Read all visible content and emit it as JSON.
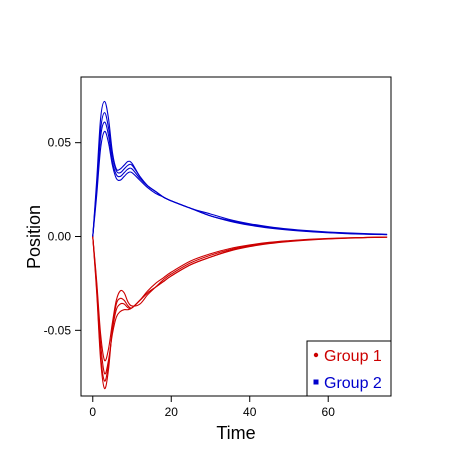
{
  "chart_data": {
    "type": "line",
    "title": "",
    "xlabel": "Time",
    "ylabel": "Position",
    "xlim": [
      -3,
      76
    ],
    "ylim": [
      -0.085,
      0.085
    ],
    "xticks": [
      "0",
      "20",
      "40",
      "60"
    ],
    "yticks": [
      "-0.05",
      "0.00",
      "0.05"
    ],
    "legend_position": "bottom-right",
    "grid": false,
    "legend": [
      {
        "label": "Group 1",
        "color": "#cc0000"
      },
      {
        "label": "Group 2",
        "color": "#0000cc"
      }
    ],
    "series": [
      {
        "group": "Group 1",
        "color": "#cc0000",
        "x": [
          0,
          1,
          2,
          3,
          4,
          5,
          6,
          7,
          8,
          9,
          10,
          12,
          14,
          16,
          18,
          20,
          25,
          30,
          35,
          40,
          45,
          50,
          55,
          60,
          65,
          70,
          75
        ],
        "y": [
          0,
          -0.03,
          -0.066,
          -0.081,
          -0.071,
          -0.049,
          -0.036,
          -0.033,
          -0.034,
          -0.037,
          -0.038,
          -0.034,
          -0.03,
          -0.027,
          -0.024,
          -0.021,
          -0.015,
          -0.011,
          -0.0075,
          -0.0052,
          -0.0036,
          -0.0025,
          -0.0017,
          -0.0012,
          -0.0008,
          -0.0005,
          -0.0003
        ]
      },
      {
        "group": "Group 1",
        "color": "#cc0000",
        "x": [
          0,
          1,
          2,
          3,
          4,
          5,
          6,
          7,
          8,
          9,
          10,
          12,
          14,
          16,
          18,
          20,
          25,
          30,
          35,
          40,
          45,
          50,
          55,
          60,
          65,
          70,
          75
        ],
        "y": [
          0,
          -0.028,
          -0.063,
          -0.077,
          -0.068,
          -0.05,
          -0.039,
          -0.036,
          -0.036,
          -0.038,
          -0.038,
          -0.034,
          -0.03,
          -0.027,
          -0.024,
          -0.021,
          -0.015,
          -0.011,
          -0.0077,
          -0.0054,
          -0.0038,
          -0.0027,
          -0.0019,
          -0.0013,
          -0.0009,
          -0.0006,
          -0.0004
        ]
      },
      {
        "group": "Group 1",
        "color": "#cc0000",
        "x": [
          0,
          1,
          2,
          3,
          4,
          5,
          6,
          7,
          8,
          9,
          10,
          12,
          14,
          16,
          18,
          20,
          25,
          30,
          35,
          40,
          45,
          50,
          55,
          60,
          65,
          70,
          75
        ],
        "y": [
          0,
          -0.026,
          -0.057,
          -0.073,
          -0.066,
          -0.052,
          -0.043,
          -0.04,
          -0.039,
          -0.039,
          -0.038,
          -0.034,
          -0.029,
          -0.025,
          -0.022,
          -0.019,
          -0.013,
          -0.0092,
          -0.0064,
          -0.0045,
          -0.0031,
          -0.0022,
          -0.0015,
          -0.001,
          -0.0007,
          -0.0005,
          -0.0003
        ]
      },
      {
        "group": "Group 1",
        "color": "#cc0000",
        "x": [
          0,
          1,
          2,
          3,
          4,
          5,
          6,
          7,
          8,
          9,
          10,
          12,
          14,
          16,
          18,
          20,
          25,
          30,
          35,
          40,
          45,
          50,
          55,
          60,
          65,
          70,
          75
        ],
        "y": [
          0,
          -0.024,
          -0.052,
          -0.066,
          -0.06,
          -0.046,
          -0.034,
          -0.029,
          -0.03,
          -0.035,
          -0.037,
          -0.036,
          -0.031,
          -0.027,
          -0.023,
          -0.02,
          -0.014,
          -0.01,
          -0.007,
          -0.0049,
          -0.0034,
          -0.0024,
          -0.0017,
          -0.0012,
          -0.0008,
          -0.0005,
          -0.0003
        ]
      },
      {
        "group": "Group 2",
        "color": "#0000cc",
        "x": [
          0,
          1,
          2,
          3,
          4,
          5,
          6,
          7,
          8,
          9,
          10,
          12,
          14,
          16,
          18,
          20,
          25,
          30,
          35,
          40,
          45,
          50,
          55,
          60,
          65,
          70,
          75
        ],
        "y": [
          0,
          0.03,
          0.063,
          0.072,
          0.063,
          0.045,
          0.036,
          0.036,
          0.038,
          0.04,
          0.039,
          0.032,
          0.027,
          0.024,
          0.021,
          0.019,
          0.015,
          0.011,
          0.0081,
          0.006,
          0.0045,
          0.0034,
          0.0026,
          0.002,
          0.0015,
          0.0012,
          0.001
        ]
      },
      {
        "group": "Group 2",
        "color": "#0000cc",
        "x": [
          0,
          1,
          2,
          3,
          4,
          5,
          6,
          7,
          8,
          9,
          10,
          12,
          14,
          16,
          18,
          20,
          25,
          30,
          35,
          40,
          45,
          50,
          55,
          60,
          65,
          70,
          75
        ],
        "y": [
          0,
          0.027,
          0.057,
          0.066,
          0.058,
          0.043,
          0.035,
          0.034,
          0.036,
          0.038,
          0.038,
          0.032,
          0.027,
          0.024,
          0.021,
          0.019,
          0.015,
          0.011,
          0.0083,
          0.0062,
          0.0047,
          0.0036,
          0.0028,
          0.0021,
          0.0016,
          0.0013,
          0.001
        ]
      },
      {
        "group": "Group 2",
        "color": "#0000cc",
        "x": [
          0,
          1,
          2,
          3,
          4,
          5,
          6,
          7,
          8,
          9,
          10,
          12,
          14,
          16,
          18,
          20,
          25,
          30,
          35,
          40,
          45,
          50,
          55,
          60,
          65,
          70,
          75
        ],
        "y": [
          0,
          0.025,
          0.053,
          0.061,
          0.054,
          0.04,
          0.033,
          0.032,
          0.034,
          0.036,
          0.036,
          0.031,
          0.027,
          0.024,
          0.021,
          0.019,
          0.015,
          0.011,
          0.0085,
          0.0064,
          0.0048,
          0.0037,
          0.0028,
          0.0022,
          0.0017,
          0.0013,
          0.001
        ]
      },
      {
        "group": "Group 2",
        "color": "#0000cc",
        "x": [
          0,
          1,
          2,
          3,
          4,
          5,
          6,
          7,
          8,
          9,
          10,
          12,
          14,
          16,
          18,
          20,
          25,
          30,
          35,
          40,
          45,
          50,
          55,
          60,
          65,
          70,
          75
        ],
        "y": [
          0,
          0.022,
          0.047,
          0.056,
          0.05,
          0.038,
          0.031,
          0.03,
          0.032,
          0.034,
          0.034,
          0.03,
          0.026,
          0.023,
          0.021,
          0.019,
          0.015,
          0.012,
          0.009,
          0.0068,
          0.0052,
          0.004,
          0.0031,
          0.0024,
          0.0019,
          0.0015,
          0.0012
        ]
      }
    ]
  }
}
